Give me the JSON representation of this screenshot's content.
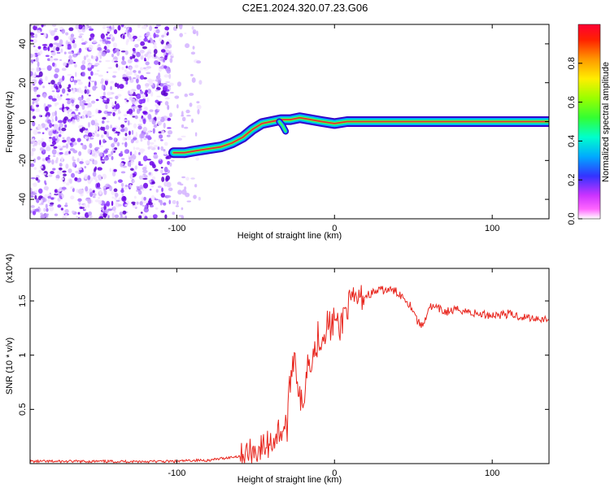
{
  "title": "C2E1.2024.320.07.23.G06",
  "chart_data": [
    {
      "type": "heatmap",
      "xlabel": "Height of straight line (km)",
      "ylabel": "Frequency (Hz)",
      "xlim": [
        -193,
        136
      ],
      "ylim": [
        -50,
        50
      ],
      "xticks": [
        -100,
        0,
        100
      ],
      "yticks": [
        -40,
        -20,
        0,
        20,
        40
      ],
      "colorbar": {
        "label": "Normalized spectral amplitude",
        "ticks": [
          0.0,
          0.2,
          0.4,
          0.6,
          0.8
        ],
        "range": [
          0,
          1
        ]
      },
      "noise_region_x": [
        -193,
        -85
      ],
      "ridge": [
        {
          "x": -102,
          "y": -16
        },
        {
          "x": -95,
          "y": -16
        },
        {
          "x": -88,
          "y": -15
        },
        {
          "x": -80,
          "y": -14
        },
        {
          "x": -72,
          "y": -13
        },
        {
          "x": -65,
          "y": -11
        },
        {
          "x": -58,
          "y": -8
        },
        {
          "x": -52,
          "y": -4
        },
        {
          "x": -46,
          "y": -1
        },
        {
          "x": -40,
          "y": 0
        },
        {
          "x": -34,
          "y": 1
        },
        {
          "x": -28,
          "y": 1
        },
        {
          "x": -22,
          "y": 2
        },
        {
          "x": -15,
          "y": 1
        },
        {
          "x": -8,
          "y": 0
        },
        {
          "x": 0,
          "y": -1
        },
        {
          "x": 8,
          "y": 0
        },
        {
          "x": 20,
          "y": 0
        },
        {
          "x": 60,
          "y": 0
        },
        {
          "x": 100,
          "y": 0
        },
        {
          "x": 136,
          "y": 0
        }
      ],
      "branch": [
        {
          "x": -35,
          "y": 0
        },
        {
          "x": -33,
          "y": -2
        },
        {
          "x": -31,
          "y": -5
        }
      ]
    },
    {
      "type": "line",
      "xlabel": "Height of straight line (km)",
      "ylabel": "SNR (10 * v/v)",
      "multiplier": "(x10^4)",
      "xlim": [
        -193,
        136
      ],
      "ylim": [
        0,
        1.8
      ],
      "xticks": [
        -100,
        0,
        100
      ],
      "yticks": [
        0.5,
        1.0,
        1.5
      ],
      "series": [
        {
          "color": "#e8261e",
          "x": [
            -193,
            -150,
            -120,
            -100,
            -90,
            -80,
            -70,
            -60,
            -55,
            -50,
            -45,
            -40,
            -35,
            -30,
            -27,
            -25,
            -22,
            -20,
            -18,
            -15,
            -12,
            -10,
            -8,
            -5,
            -2,
            0,
            3,
            6,
            10,
            15,
            20,
            25,
            30,
            35,
            40,
            45,
            50,
            53,
            56,
            60,
            65,
            70,
            80,
            90,
            100,
            110,
            120,
            130,
            136
          ],
          "y": [
            0.02,
            0.02,
            0.02,
            0.02,
            0.03,
            0.03,
            0.05,
            0.07,
            0.1,
            0.12,
            0.15,
            0.2,
            0.3,
            0.35,
            0.95,
            1.0,
            0.6,
            0.45,
            0.9,
            1.0,
            1.05,
            1.2,
            1.15,
            1.3,
            1.25,
            1.35,
            1.2,
            1.4,
            1.48,
            1.52,
            1.55,
            1.58,
            1.6,
            1.6,
            1.58,
            1.52,
            1.42,
            1.3,
            1.27,
            1.45,
            1.43,
            1.4,
            1.42,
            1.38,
            1.37,
            1.38,
            1.35,
            1.34,
            1.33
          ]
        }
      ]
    }
  ],
  "labels": {
    "top_y_0": "0",
    "colorbar_zero": "0.0"
  }
}
